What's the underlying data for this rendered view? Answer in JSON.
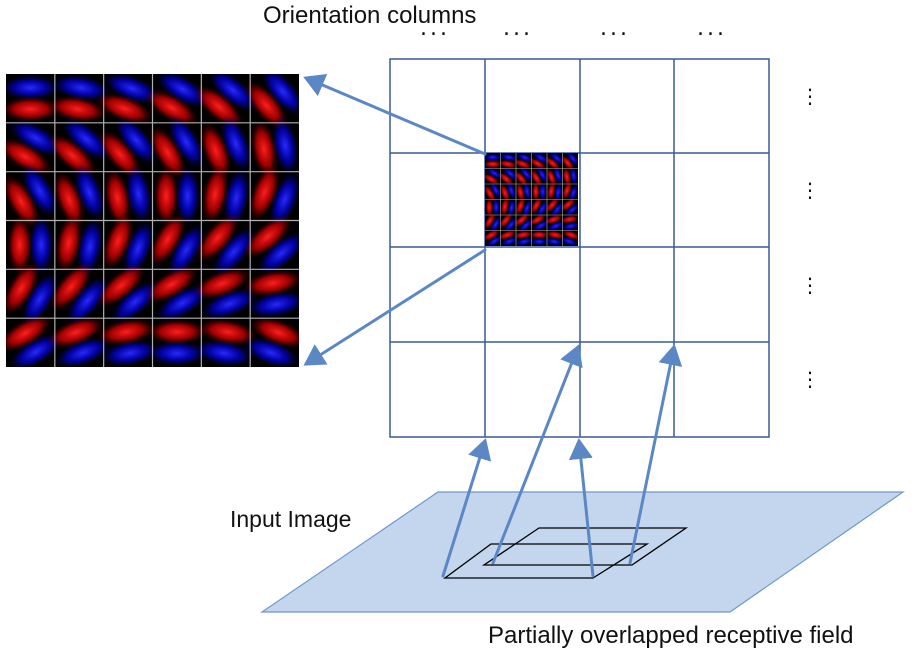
{
  "labels": {
    "title": "Orientation columns",
    "input_image": "Input Image",
    "receptive_field": "Partially overlapped receptive field"
  },
  "ellipsis": {
    "horizontal": "...",
    "vertical": "⋮"
  },
  "colors": {
    "grid_line": "#3a5a96",
    "arrow": "#5b87c5",
    "plane_fill": "#c3d6ee",
    "plane_stroke": "#6f97cc",
    "filter_red": "#ff1a1a",
    "filter_blue": "#1a1aff",
    "filter_bg": "#000000",
    "filter_separator": "#b0b0b0"
  },
  "column_grid": {
    "rows": 4,
    "cols": 4,
    "highlighted_cell": [
      1,
      1
    ]
  },
  "filter_bank": {
    "rows": 6,
    "cols": 6,
    "orientations_deg": [
      [
        0,
        10,
        20,
        30,
        40,
        50
      ],
      [
        30,
        40,
        50,
        60,
        70,
        80
      ],
      [
        60,
        70,
        80,
        90,
        100,
        110
      ],
      [
        90,
        100,
        110,
        120,
        130,
        140
      ],
      [
        120,
        130,
        140,
        150,
        160,
        170
      ],
      [
        150,
        160,
        170,
        180,
        190,
        200
      ]
    ]
  }
}
